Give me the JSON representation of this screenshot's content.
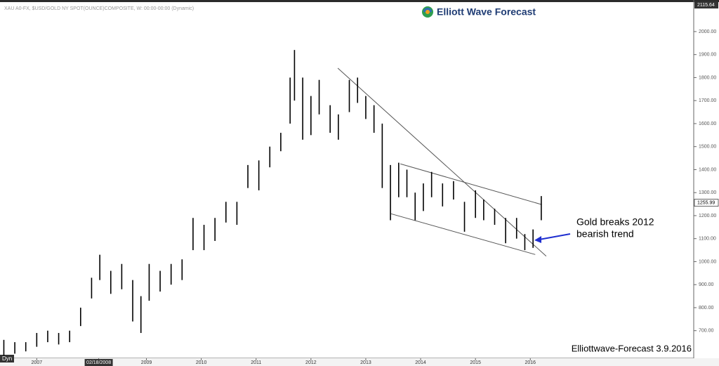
{
  "chart_data": {
    "type": "range",
    "header": "XAU A0-FX, $USD/GOLD NY SPOT(OUNCE)COMPOSITE, W: 00:00-00:00 (Dynamic)",
    "logo": "Elliott Wave Forecast",
    "annotation": [
      "Gold breaks 2012",
      "bearish trend"
    ],
    "footer": "Elliottwave-Forecast 3.9.2016",
    "corner_label": "Dyn",
    "xlim": [
      2006.33,
      2018.98
    ],
    "ylim": [
      580,
      2125
    ],
    "xticks": [
      2007,
      {
        "value": 2008.13,
        "label": "02/18/2008"
      },
      2009,
      2010,
      2011,
      2012,
      2013,
      2014,
      2015,
      2016
    ],
    "yticks": [
      {
        "value": 700,
        "label": "700.00"
      },
      {
        "value": 800,
        "label": "800.00"
      },
      {
        "value": 900,
        "label": "900.00"
      },
      {
        "value": 1000,
        "label": "1000.00"
      },
      {
        "value": 1100,
        "label": "1100.00"
      },
      {
        "value": 1200,
        "label": "1200.00"
      },
      {
        "value": 1300,
        "label": "1300.00"
      },
      {
        "value": 1400,
        "label": "1400.00"
      },
      {
        "value": 1500,
        "label": "1500.00"
      },
      {
        "value": 1600,
        "label": "1600.00"
      },
      {
        "value": 1700,
        "label": "1700.00"
      },
      {
        "value": 1800,
        "label": "1800.00"
      },
      {
        "value": 1900,
        "label": "1900.00"
      },
      {
        "value": 2000,
        "label": "2000.00"
      }
    ],
    "price_labels": [
      {
        "value": 2115.64,
        "label": "2115.64"
      },
      {
        "value": 1255.99,
        "label": "1255.99"
      }
    ],
    "series": [
      {
        "name": "XAU A0-FX",
        "color": "#000000",
        "x": [
          2006.4,
          2006.6,
          2006.8,
          2007.0,
          2007.2,
          2007.4,
          2007.6,
          2007.8,
          2008.0,
          2008.15,
          2008.35,
          2008.55,
          2008.75,
          2008.9,
          2009.05,
          2009.25,
          2009.45,
          2009.65,
          2009.85,
          2010.05,
          2010.25,
          2010.45,
          2010.65,
          2010.85,
          2011.05,
          2011.25,
          2011.45,
          2011.62,
          2011.7,
          2011.85,
          2012.0,
          2012.15,
          2012.35,
          2012.5,
          2012.7,
          2012.85,
          2013.0,
          2013.15,
          2013.3,
          2013.45,
          2013.6,
          2013.75,
          2013.9,
          2014.05,
          2014.2,
          2014.4,
          2014.6,
          2014.8,
          2015.0,
          2015.15,
          2015.35,
          2015.55,
          2015.75,
          2015.9,
          2016.05,
          2016.2
        ],
        "high": [
          660,
          650,
          650,
          690,
          700,
          690,
          700,
          800,
          930,
          1030,
          960,
          990,
          920,
          850,
          990,
          960,
          990,
          1010,
          1190,
          1160,
          1190,
          1260,
          1260,
          1420,
          1440,
          1500,
          1560,
          1800,
          1920,
          1800,
          1720,
          1790,
          1680,
          1640,
          1790,
          1800,
          1720,
          1680,
          1600,
          1420,
          1430,
          1400,
          1300,
          1340,
          1390,
          1340,
          1350,
          1260,
          1310,
          1270,
          1230,
          1190,
          1190,
          1120,
          1140,
          1285
        ],
        "low": [
          590,
          600,
          610,
          630,
          650,
          640,
          650,
          720,
          840,
          920,
          860,
          880,
          740,
          690,
          830,
          870,
          900,
          920,
          1050,
          1050,
          1090,
          1170,
          1160,
          1320,
          1310,
          1410,
          1480,
          1600,
          1700,
          1530,
          1550,
          1640,
          1560,
          1530,
          1650,
          1690,
          1620,
          1560,
          1320,
          1180,
          1280,
          1280,
          1180,
          1220,
          1280,
          1240,
          1270,
          1130,
          1190,
          1180,
          1160,
          1080,
          1100,
          1050,
          1060,
          1180
        ]
      }
    ],
    "trendlines": [
      {
        "x": [
          2012.49,
          2016.29
        ],
        "y": [
          1841,
          1024
        ]
      },
      {
        "x": [
          2013.63,
          2016.21
        ],
        "y": [
          1425,
          1248
        ]
      },
      {
        "x": [
          2013.46,
          2016.09
        ],
        "y": [
          1208,
          1031
        ]
      }
    ]
  }
}
